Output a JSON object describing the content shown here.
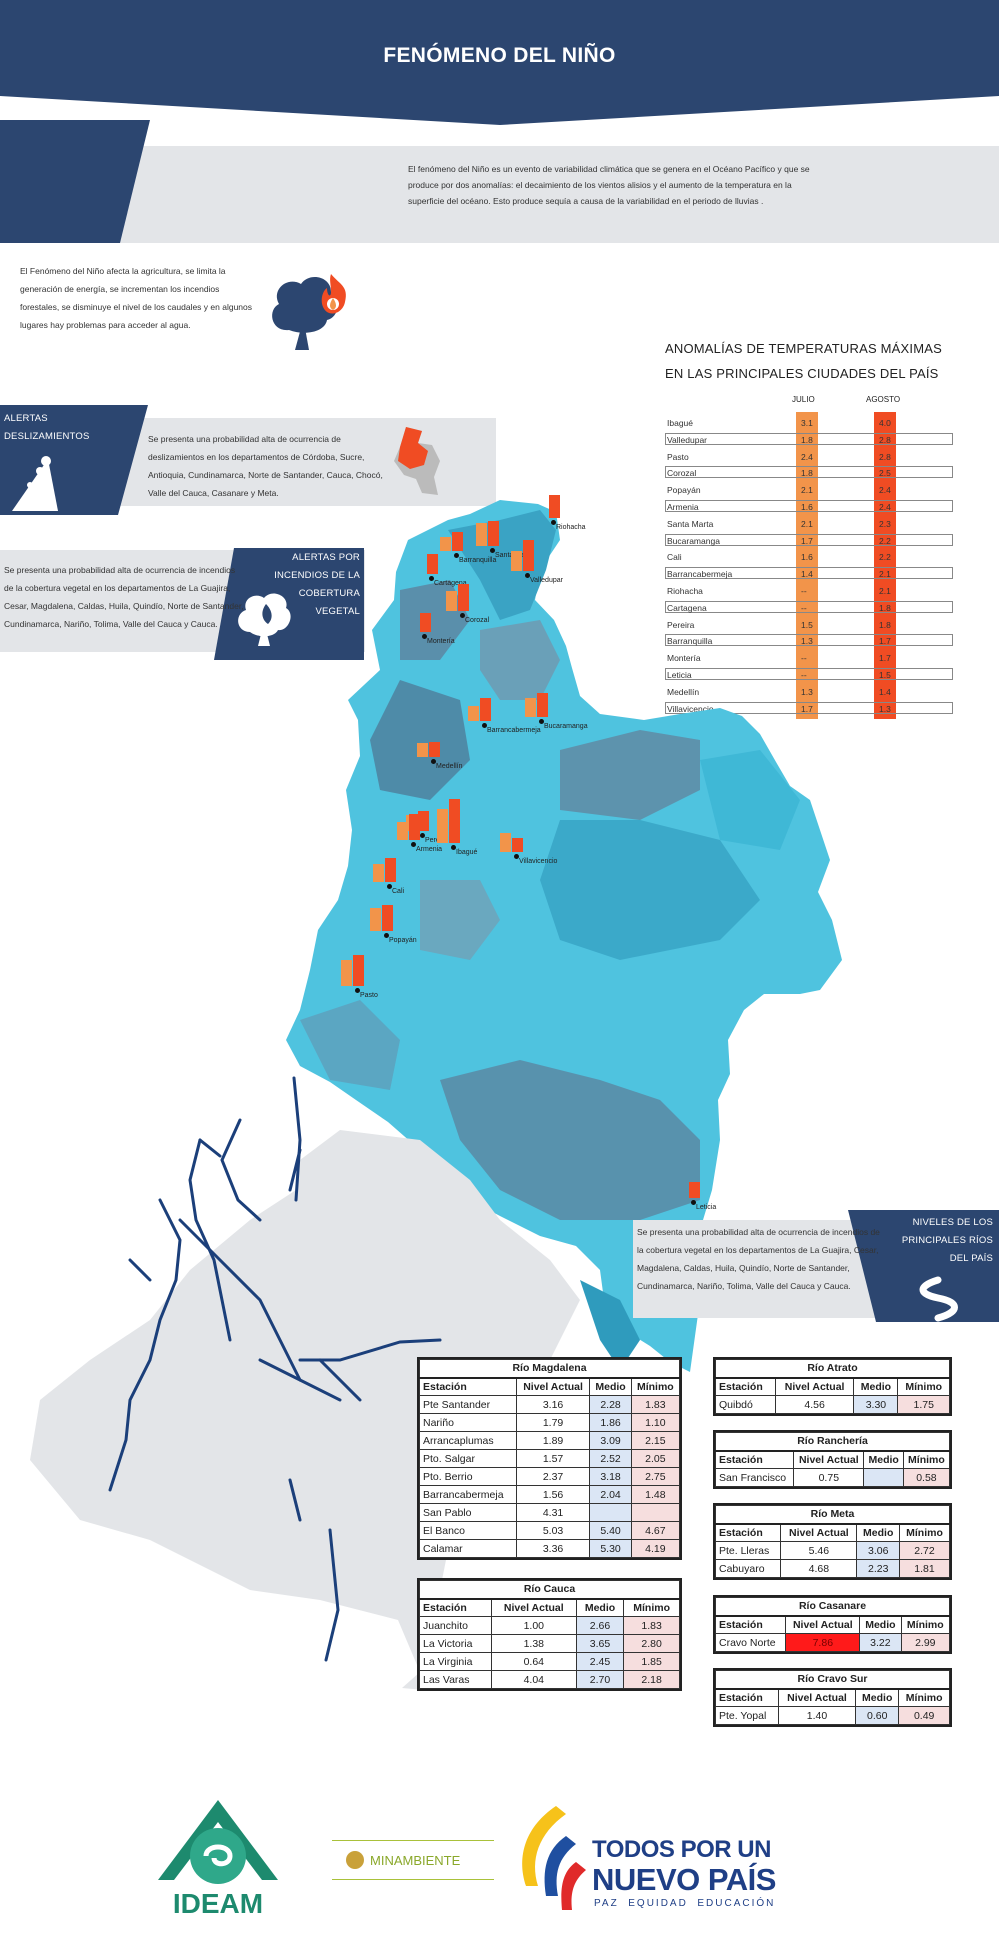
{
  "header": {
    "title": "FENÓMENO DEL NIÑO"
  },
  "intro": {
    "text": "El fenómeno del Niño es un evento de variabilidad climática que se genera en el Océano Pacífico y que se produce por dos anomalías: el decaimiento de los vientos alisios y el aumento de la temperatura en la superficie del océano. Esto produce sequía a causa de la variabilidad en el periodo de lluvias ."
  },
  "effects": {
    "text": "El Fenómeno del Niño afecta la agricultura, se limita la generación de energía, se incrementan los incendios forestales, se disminuye el nivel de los caudales y en algunos lugares hay problemas para acceder al agua.",
    "icon": "tree-fire-icon"
  },
  "landslides": {
    "label": "ALERTAS DESLIZAMIENTOS",
    "text": "Se presenta una probabilidad alta de ocurrencia de deslizamientos en los departamentos de Córdoba, Sucre, Antioquia, Cundinamarca, Norte de Santander, Cauca, Chocó, Valle del Cauca, Casanare y Meta."
  },
  "fires": {
    "label": "ALERTAS POR INCENDIOS DE LA COBERTURA VEGETAL",
    "text": "Se presenta una probabilidad alta de ocurrencia de incendios de la cobertura vegetal en los departamentos de La Guajira, Cesar, Magdalena, Caldas, Huila, Quindío, Norte de Santander, Cundinamarca, Nariño, Tolima, Valle del Cauca y Cauca."
  },
  "rivers_note": {
    "label": "NIVELES DE LOS PRINCIPALES RÍOS DEL PAÍS",
    "text": "Se presenta una probabilidad alta de ocurrencia de incendios de la cobertura vegetal en los departamentos de La Guajira, Cesar, Magdalena, Caldas, Huila, Quindío, Norte de Santander, Cundinamarca, Nariño, Tolima, Valle del Cauca y Cauca."
  },
  "chart_data": {
    "type": "table",
    "title_line1": "ANOMALÍAS DE TEMPERATURAS MÁXIMAS",
    "title_line2": "EN LAS PRINCIPALES CIUDADES DEL PAÍS",
    "columns": [
      "JULIO",
      "AGOSTO"
    ],
    "rows": [
      {
        "city": "Ibagué",
        "julio": "3.1",
        "agosto": "4.0"
      },
      {
        "city": "Valledupar",
        "julio": "1.8",
        "agosto": "2.8"
      },
      {
        "city": "Pasto",
        "julio": "2.4",
        "agosto": "2.8"
      },
      {
        "city": "Corozal",
        "julio": "1.8",
        "agosto": "2.5"
      },
      {
        "city": "Popayán",
        "julio": "2.1",
        "agosto": "2.4"
      },
      {
        "city": "Armenia",
        "julio": "1.6",
        "agosto": "2.4"
      },
      {
        "city": "Santa Marta",
        "julio": "2.1",
        "agosto": "2.3"
      },
      {
        "city": "Bucaramanga",
        "julio": "1.7",
        "agosto": "2.2"
      },
      {
        "city": "Cali",
        "julio": "1.6",
        "agosto": "2.2"
      },
      {
        "city": "Barrancabermeja",
        "julio": "1.4",
        "agosto": "2.1"
      },
      {
        "city": "Riohacha",
        "julio": "--",
        "agosto": "2.1"
      },
      {
        "city": "Cartagena",
        "julio": "--",
        "agosto": "1.8"
      },
      {
        "city": "Pereira",
        "julio": "1.5",
        "agosto": "1.8"
      },
      {
        "city": "Barranquilla",
        "julio": "1.3",
        "agosto": "1.7"
      },
      {
        "city": "Montería",
        "julio": "--",
        "agosto": "1.7"
      },
      {
        "city": "Leticia",
        "julio": "--",
        "agosto": "1.5"
      },
      {
        "city": "Medellín",
        "julio": "1.3",
        "agosto": "1.4"
      },
      {
        "city": "Villavicencio",
        "julio": "1.7",
        "agosto": "1.3"
      }
    ]
  },
  "map_cities": [
    {
      "name": "Riohacha",
      "julio": 0,
      "agosto": 2.1
    },
    {
      "name": "Barranquilla",
      "julio": 1.3,
      "agosto": 1.7
    },
    {
      "name": "Santa Marta",
      "julio": 2.1,
      "agosto": 2.3
    },
    {
      "name": "Valledupar",
      "julio": 1.8,
      "agosto": 2.8
    },
    {
      "name": "Cartagena",
      "julio": 0,
      "agosto": 1.8
    },
    {
      "name": "Corozal",
      "julio": 1.8,
      "agosto": 2.5
    },
    {
      "name": "Montería",
      "julio": 0,
      "agosto": 1.7
    },
    {
      "name": "Barrancabermeja",
      "julio": 1.4,
      "agosto": 2.1
    },
    {
      "name": "Bucaramanga",
      "julio": 1.7,
      "agosto": 2.2
    },
    {
      "name": "Medellín",
      "julio": 1.3,
      "agosto": 1.4
    },
    {
      "name": "Pereira",
      "julio": 1.5,
      "agosto": 1.8
    },
    {
      "name": "Armenia",
      "julio": 1.6,
      "agosto": 2.4
    },
    {
      "name": "Ibagué",
      "julio": 3.1,
      "agosto": 4.0
    },
    {
      "name": "Villavicencio",
      "julio": 1.7,
      "agosto": 1.3
    },
    {
      "name": "Cali",
      "julio": 1.6,
      "agosto": 2.2
    },
    {
      "name": "Popayán",
      "julio": 2.1,
      "agosto": 2.4
    },
    {
      "name": "Pasto",
      "julio": 2.4,
      "agosto": 2.8
    },
    {
      "name": "Leticia",
      "julio": 0,
      "agosto": 1.5
    }
  ],
  "river_tables": {
    "headers": [
      "Estación",
      "Nivel Actual",
      "Medio",
      "Mínimo"
    ],
    "magdalena": {
      "title": "Río Magdalena",
      "rows": [
        [
          "Pte Santander",
          "3.16",
          "2.28",
          "1.83"
        ],
        [
          "Nariño",
          "1.79",
          "1.86",
          "1.10"
        ],
        [
          "Arrancaplumas",
          "1.89",
          "3.09",
          "2.15"
        ],
        [
          "Pto. Salgar",
          "1.57",
          "2.52",
          "2.05"
        ],
        [
          "Pto. Berrio",
          "2.37",
          "3.18",
          "2.75"
        ],
        [
          "Barrancabermeja",
          "1.56",
          "2.04",
          "1.48"
        ],
        [
          "San Pablo",
          "4.31",
          "",
          ""
        ],
        [
          "El Banco",
          "5.03",
          "5.40",
          "4.67"
        ],
        [
          "Calamar",
          "3.36",
          "5.30",
          "4.19"
        ]
      ]
    },
    "cauca": {
      "title": "Río Cauca",
      "rows": [
        [
          "Juanchito",
          "1.00",
          "2.66",
          "1.83"
        ],
        [
          "La Victoria",
          "1.38",
          "3.65",
          "2.80"
        ],
        [
          "La Virginia",
          "0.64",
          "2.45",
          "1.85"
        ],
        [
          "Las Varas",
          "4.04",
          "2.70",
          "2.18"
        ]
      ]
    },
    "atrato": {
      "title": "Río Atrato",
      "rows": [
        [
          "Quibdó",
          "4.56",
          "3.30",
          "1.75"
        ]
      ]
    },
    "rancheria": {
      "title": "Río Ranchería",
      "rows": [
        [
          "San Francisco",
          "0.75",
          "",
          "0.58"
        ]
      ]
    },
    "meta": {
      "title": "Río Meta",
      "rows": [
        [
          "Pte. Lleras",
          "5.46",
          "3.06",
          "2.72"
        ],
        [
          "Cabuyaro",
          "4.68",
          "2.23",
          "1.81"
        ]
      ]
    },
    "casanare": {
      "title": "Río Casanare",
      "rows": [
        [
          "Cravo Norte",
          "7.86",
          "3.22",
          "2.99"
        ]
      ]
    },
    "cravosur": {
      "title": "Río Cravo Sur",
      "rows": [
        [
          "Pte. Yopal",
          "1.40",
          "0.60",
          "0.49"
        ]
      ]
    }
  },
  "footer": {
    "ideam": "IDEAM",
    "minambiente": "MINAMBIENTE",
    "todos_line1": "TODOS POR UN",
    "todos_line2": "NUEVO PAÍS",
    "todos_tagline": "PAZ  EQUIDAD  EDUCACIÓN"
  },
  "colors": {
    "navy": "#2c4670",
    "gray": "#e3e5e8",
    "julio": "#f2944a",
    "agosto": "#f04c23"
  }
}
